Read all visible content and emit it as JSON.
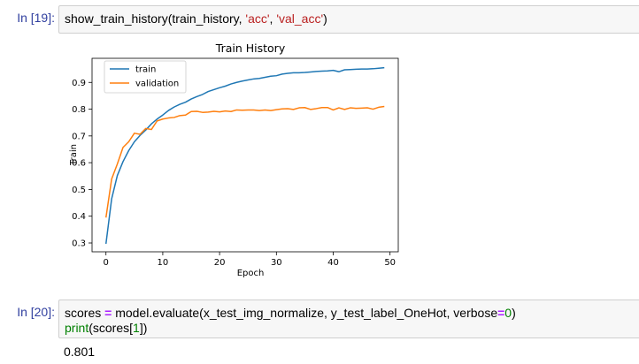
{
  "cells": [
    {
      "prompt": "In [19]:",
      "code_parts": {
        "fn": "show_train_history(train_history, ",
        "s1": "'acc'",
        "sep": ", ",
        "s2": "'val_acc'",
        "end": ")"
      }
    },
    {
      "prompt": "In [20]:",
      "code_parts": {
        "a": "scores ",
        "eq": "=",
        "b": " model.evaluate(x_test_img_normalize, y_test_label_OneHot, verbose",
        "eq2": "=",
        "zero": "0",
        "c": ")",
        "print": "print",
        "d": "(scores[",
        "one": "1",
        "e": "])"
      },
      "output": "0.801"
    }
  ],
  "chart_data": {
    "type": "line",
    "title": "Train History",
    "xlabel": "Epoch",
    "ylabel": "Train",
    "xlim": [
      -2.45,
      51.45
    ],
    "ylim": [
      0.267,
      0.99
    ],
    "xticks": [
      0,
      10,
      20,
      30,
      40,
      50
    ],
    "yticks": [
      0.3,
      0.4,
      0.5,
      0.6,
      0.7,
      0.8,
      0.9
    ],
    "legend_position": "top-left",
    "x": [
      0,
      1,
      2,
      3,
      4,
      5,
      6,
      7,
      8,
      9,
      10,
      11,
      12,
      13,
      14,
      15,
      16,
      17,
      18,
      19,
      20,
      21,
      22,
      23,
      24,
      25,
      26,
      27,
      28,
      29,
      30,
      31,
      32,
      33,
      34,
      35,
      36,
      37,
      38,
      39,
      40,
      41,
      42,
      43,
      44,
      45,
      46,
      47,
      48,
      49
    ],
    "series": [
      {
        "name": "train",
        "color": "#1f77b4",
        "values": [
          0.297,
          0.465,
          0.552,
          0.604,
          0.645,
          0.678,
          0.702,
          0.722,
          0.745,
          0.763,
          0.778,
          0.795,
          0.808,
          0.818,
          0.826,
          0.838,
          0.847,
          0.855,
          0.866,
          0.873,
          0.88,
          0.886,
          0.894,
          0.9,
          0.905,
          0.909,
          0.913,
          0.915,
          0.919,
          0.923,
          0.925,
          0.931,
          0.934,
          0.936,
          0.936,
          0.937,
          0.939,
          0.941,
          0.942,
          0.943,
          0.945,
          0.94,
          0.947,
          0.948,
          0.949,
          0.95,
          0.95,
          0.951,
          0.953,
          0.955
        ]
      },
      {
        "name": "validation",
        "color": "#ff7f0e",
        "values": [
          0.395,
          0.539,
          0.595,
          0.657,
          0.678,
          0.71,
          0.706,
          0.728,
          0.724,
          0.756,
          0.763,
          0.767,
          0.769,
          0.776,
          0.778,
          0.791,
          0.792,
          0.788,
          0.789,
          0.792,
          0.79,
          0.793,
          0.791,
          0.797,
          0.796,
          0.797,
          0.797,
          0.795,
          0.797,
          0.795,
          0.798,
          0.801,
          0.802,
          0.799,
          0.805,
          0.806,
          0.799,
          0.802,
          0.806,
          0.806,
          0.797,
          0.805,
          0.799,
          0.805,
          0.803,
          0.804,
          0.805,
          0.8,
          0.807,
          0.81
        ]
      }
    ]
  }
}
